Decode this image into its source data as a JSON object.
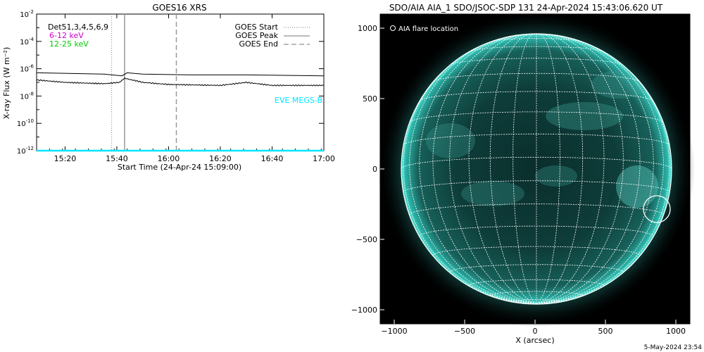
{
  "left_panel": {
    "title": "GOES16 XRS",
    "ylabel": "X-ray Flux (W m⁻²)",
    "xlabel": "Start Time (24-Apr-24 15:09:00)",
    "x_ticks": [
      "15:20",
      "15:40",
      "16:00",
      "16:20",
      "16:40",
      "17:00"
    ],
    "y_tick_exponents": [
      "-2",
      "-4",
      "-6",
      "-8",
      "-10",
      "-12"
    ],
    "y_tick_base": "10",
    "legend_left": [
      {
        "text": "Det51,3,4,5,6,9",
        "color": "#000000"
      },
      {
        "text": "6-12 keV",
        "color": "#cc00cc"
      },
      {
        "text": "12-25 keV",
        "color": "#00cc00"
      }
    ],
    "legend_right": [
      {
        "text": "GOES Start",
        "style": "dotted"
      },
      {
        "text": "GOES Peak",
        "style": "solid"
      },
      {
        "text": "GOES End",
        "style": "dashed"
      }
    ],
    "eve_label": "EVE MEGS-B",
    "colors": {
      "eve": "#00e5ff",
      "lines": "#000000",
      "markers": "#888888"
    }
  },
  "right_panel": {
    "title": "SDO/AIA AIA_1 SDO/JSOC-SDP 131 24-Apr-2024 15:43:06.620 UT",
    "legend": "AIA flare location",
    "xlabel": "X (arcsec)",
    "x_ticks": [
      "−1000",
      "−500",
      "0",
      "500",
      "1000"
    ],
    "y_ticks": [
      "1000",
      "500",
      "0",
      "−500",
      "−1000"
    ],
    "colors": {
      "disk": "#0d3a36",
      "limb": "#2fd9c9",
      "background": "#000000"
    }
  },
  "footer": {
    "timestamp": "5-May-2024 23:54"
  },
  "chart_data": [
    {
      "type": "line",
      "title": "GOES16 XRS",
      "xlabel": "Start Time (24-Apr-24 15:09:00)",
      "ylabel": "X-ray Flux (W m⁻²)",
      "y_scale": "log",
      "xlim_minutes_after_start": [
        0,
        111
      ],
      "ylim": [
        1e-12,
        0.01
      ],
      "x_ticks": [
        "15:20",
        "15:40",
        "16:00",
        "16:20",
        "16:40",
        "17:00"
      ],
      "events": {
        "goes_start": "15:38",
        "goes_peak": "15:43",
        "goes_end": "16:03"
      },
      "series": [
        {
          "name": "6-12 keV",
          "x": [
            "15:09",
            "15:35",
            "15:42",
            "15:44",
            "15:50",
            "16:10",
            "16:30",
            "17:00"
          ],
          "y": [
            5e-07,
            4e-07,
            3e-07,
            5e-07,
            4e-07,
            3.5e-07,
            3.5e-07,
            3e-07
          ]
        },
        {
          "name": "12-25 keV",
          "x": [
            "15:09",
            "15:20",
            "15:35",
            "15:41",
            "15:43",
            "15:50",
            "16:00",
            "16:20",
            "16:30",
            "16:40",
            "17:00"
          ],
          "y": [
            1.5e-07,
            1e-07,
            8e-08,
            1e-07,
            2e-07,
            1e-07,
            7e-08,
            6e-08,
            1e-07,
            6e-08,
            6e-08
          ]
        },
        {
          "name": "EVE MEGS-B",
          "x": [
            "15:09",
            "17:00"
          ],
          "y": [
            1e-12,
            1e-12
          ]
        }
      ]
    },
    {
      "type": "scatter",
      "title": "SDO/AIA AIA_1 SDO/JSOC-SDP 131 24-Apr-2024 15:43:06.620 UT",
      "xlabel": "X (arcsec)",
      "ylabel": "",
      "xlim": [
        -1100,
        1100
      ],
      "ylim": [
        -1100,
        1100
      ],
      "points": [
        {
          "name": "AIA flare location",
          "x": 860,
          "y": -290
        }
      ]
    }
  ]
}
